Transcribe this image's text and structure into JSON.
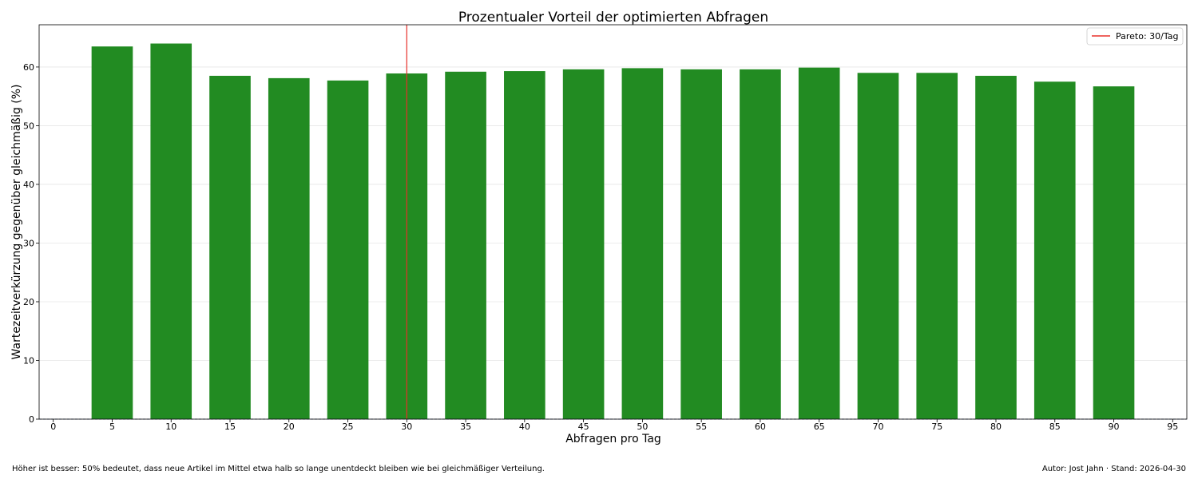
{
  "chart_data": {
    "type": "bar",
    "title": "Prozentualer Vorteil der optimierten Abfragen",
    "xlabel": "Abfragen pro Tag",
    "ylabel": "Wartezeitverkürzung gegenüber gleichmäßig (%)",
    "x": [
      5,
      10,
      15,
      20,
      25,
      30,
      35,
      40,
      45,
      50,
      55,
      60,
      65,
      70,
      75,
      80,
      85,
      90
    ],
    "values": [
      63.5,
      64.0,
      58.5,
      58.1,
      57.7,
      58.9,
      59.2,
      59.3,
      59.6,
      59.8,
      59.6,
      59.6,
      59.9,
      59.0,
      59.0,
      58.5,
      57.5,
      56.7
    ],
    "xlim": [
      -1.2,
      96.2
    ],
    "ylim": [
      0,
      67.2
    ],
    "xticks": [
      0,
      5,
      10,
      15,
      20,
      25,
      30,
      35,
      40,
      45,
      50,
      55,
      60,
      65,
      70,
      75,
      80,
      85,
      90,
      95
    ],
    "yticks": [
      0,
      10,
      20,
      30,
      40,
      50,
      60
    ],
    "bar_color": "#228B22",
    "bar_width_units": 3.5,
    "grid": true,
    "reference_line": {
      "x": 30,
      "color": "#e8302a",
      "label": "Pareto: 30/Tag"
    },
    "baseline": {
      "y": 0,
      "color": "#4a6fa0",
      "style": "dashed"
    },
    "legend": {
      "position": "top-right",
      "entries": [
        "Pareto: 30/Tag"
      ]
    }
  },
  "footer": {
    "note": "Höher ist besser: 50% bedeutet, dass neue Artikel im Mittel etwa halb so lange unentdeckt bleiben wie bei gleichmäßiger Verteilung.",
    "credit": "Autor: Jost Jahn · Stand: 2026-04-30"
  }
}
